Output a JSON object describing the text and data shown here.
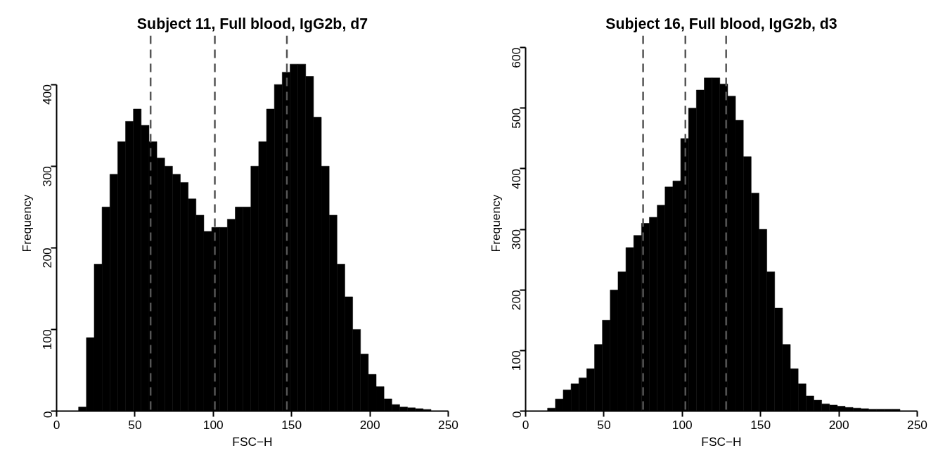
{
  "chart_data": [
    {
      "type": "histogram",
      "title": "Subject 11, Full blood, IgG2b, d7",
      "xlabel": "FSC−H",
      "ylabel": "Frequency",
      "bins": [
        14,
        19,
        24,
        29,
        34,
        39,
        44,
        49,
        54,
        59,
        64,
        69,
        74,
        79,
        84,
        89,
        94,
        99,
        104,
        109,
        114,
        119,
        124,
        129,
        134,
        139,
        144,
        149,
        154,
        159,
        164,
        169,
        174,
        179,
        184,
        189,
        194,
        199,
        204,
        209,
        214,
        219,
        224,
        229,
        234,
        239
      ],
      "values": [
        5,
        90,
        180,
        250,
        290,
        330,
        355,
        370,
        350,
        330,
        310,
        300,
        290,
        280,
        260,
        240,
        220,
        225,
        225,
        235,
        250,
        250,
        300,
        330,
        370,
        400,
        415,
        425,
        425,
        410,
        360,
        300,
        240,
        180,
        140,
        100,
        70,
        45,
        30,
        15,
        8,
        5,
        4,
        3,
        2
      ],
      "color": "#000000",
      "xlim": [
        0,
        250
      ],
      "ylim": [
        0,
        460
      ],
      "xticks": [
        0,
        50,
        100,
        150,
        200,
        250
      ],
      "yticks": [
        0,
        100,
        200,
        300,
        400
      ],
      "grid": false,
      "ref_lines": [
        {
          "axis": "x",
          "value": 60,
          "color": "#555555",
          "line_style": "dashed"
        },
        {
          "axis": "x",
          "value": 101,
          "color": "#555555",
          "line_style": "dashed"
        },
        {
          "axis": "x",
          "value": 147,
          "color": "#555555",
          "line_style": "dashed"
        }
      ]
    },
    {
      "type": "histogram",
      "title": "Subject 16, Full blood, IgG2b, d3",
      "xlabel": "FSC−H",
      "ylabel": "Frequency",
      "bins": [
        14,
        19,
        24,
        29,
        34,
        39,
        44,
        49,
        54,
        59,
        64,
        69,
        74,
        79,
        84,
        89,
        94,
        99,
        104,
        109,
        114,
        119,
        124,
        129,
        134,
        139,
        144,
        149,
        154,
        159,
        164,
        169,
        174,
        179,
        184,
        189,
        194,
        199,
        204,
        209,
        214,
        219,
        224,
        229,
        234,
        239
      ],
      "values": [
        5,
        20,
        35,
        45,
        55,
        70,
        110,
        150,
        200,
        230,
        270,
        290,
        310,
        320,
        340,
        370,
        380,
        450,
        500,
        530,
        550,
        550,
        540,
        520,
        480,
        420,
        360,
        300,
        230,
        170,
        110,
        70,
        45,
        25,
        18,
        12,
        10,
        8,
        6,
        5,
        4,
        3,
        3,
        3,
        3
      ],
      "color": "#000000",
      "xlim": [
        0,
        250
      ],
      "ylim": [
        0,
        620
      ],
      "xticks": [
        0,
        50,
        100,
        150,
        200,
        250
      ],
      "yticks": [
        0,
        100,
        200,
        300,
        400,
        500,
        600
      ],
      "grid": false,
      "ref_lines": [
        {
          "axis": "x",
          "value": 75,
          "color": "#555555",
          "line_style": "dashed"
        },
        {
          "axis": "x",
          "value": 102,
          "color": "#555555",
          "line_style": "dashed"
        },
        {
          "axis": "x",
          "value": 128,
          "color": "#555555",
          "line_style": "dashed"
        }
      ]
    }
  ]
}
